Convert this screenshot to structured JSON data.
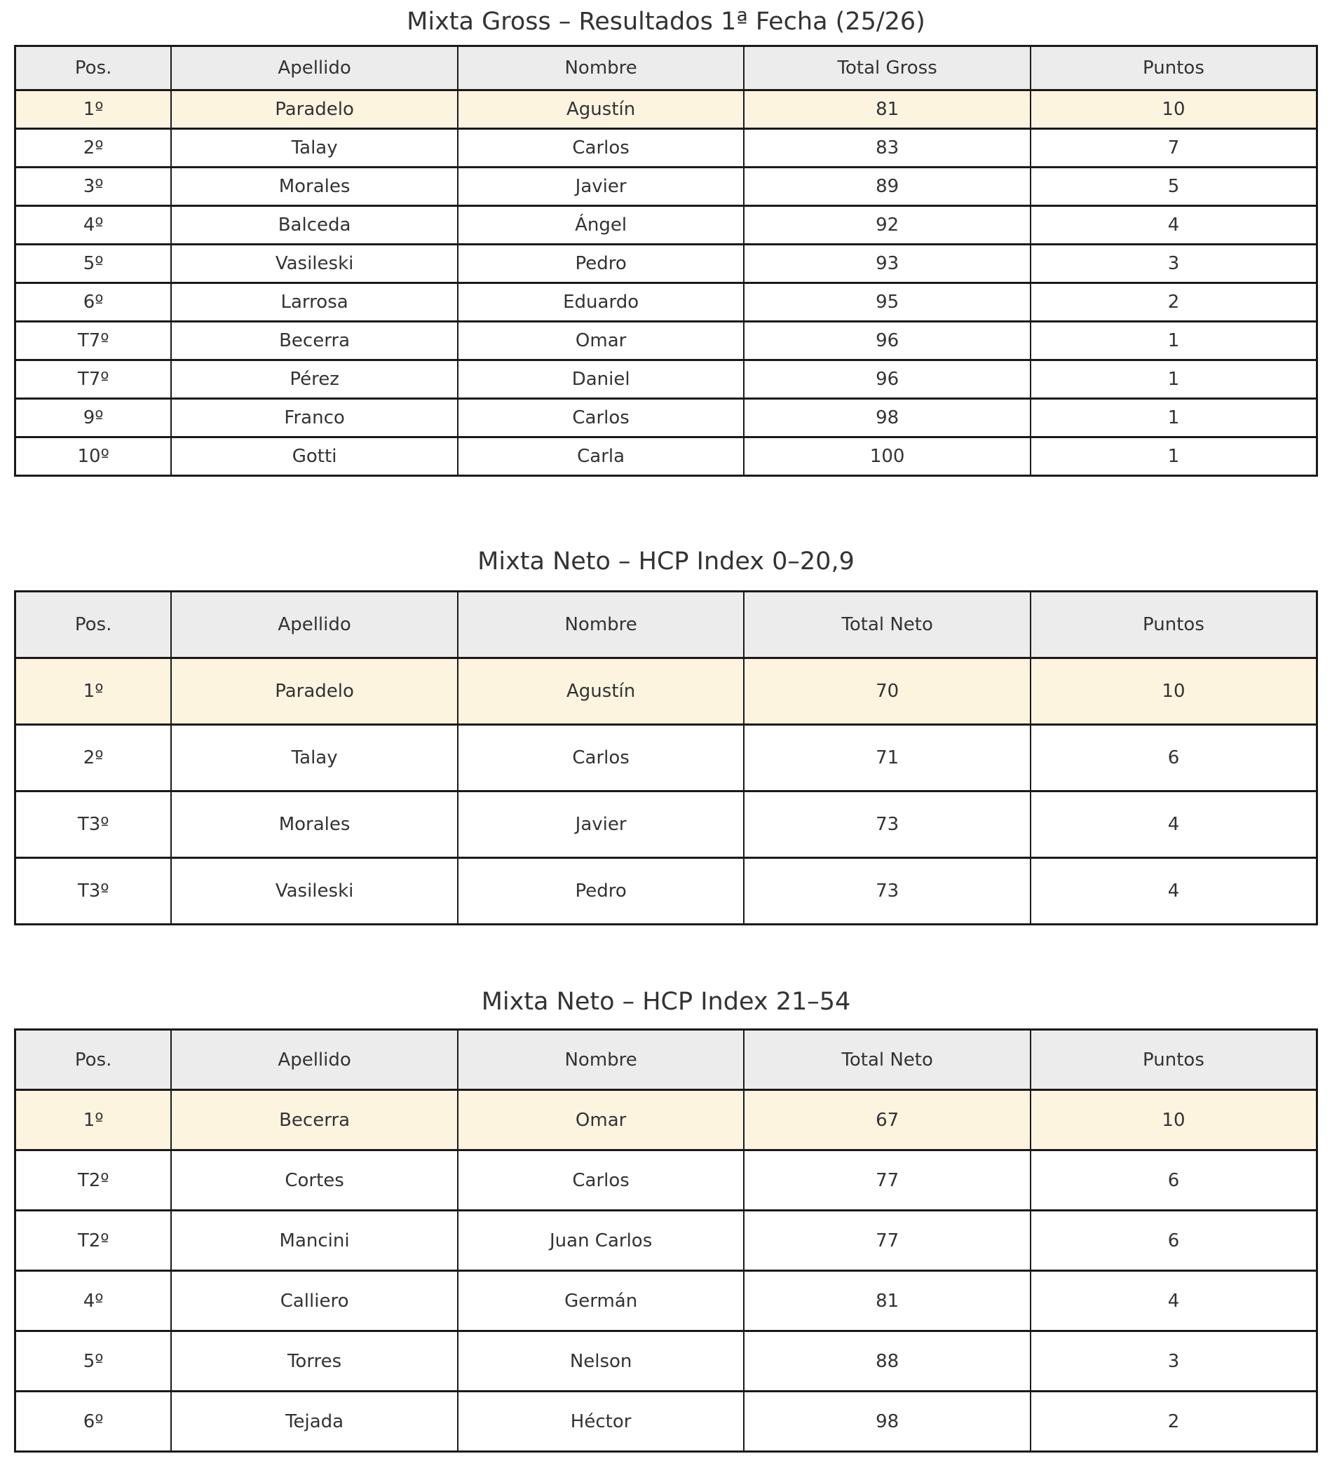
{
  "page": {
    "background": "#ffffff",
    "text_color": "#333333",
    "border_color": "#1a1a1a",
    "header_bg": "#ececec",
    "highlight_bg": "#fdf4e0"
  },
  "tables": [
    {
      "id": "mixta-gross",
      "title": "Mixta Gross – Resultados 1ª Fecha (25/26)",
      "columns": [
        "Pos.",
        "Apellido",
        "Nombre",
        "Total Gross",
        "Puntos"
      ],
      "highlight_row": 0,
      "rows": [
        [
          "1º",
          "Paradelo",
          "Agustín",
          "81",
          "10"
        ],
        [
          "2º",
          "Talay",
          "Carlos",
          "83",
          "7"
        ],
        [
          "3º",
          "Morales",
          "Javier",
          "89",
          "5"
        ],
        [
          "4º",
          "Balceda",
          "Ángel",
          "92",
          "4"
        ],
        [
          "5º",
          "Vasileski",
          "Pedro",
          "93",
          "3"
        ],
        [
          "6º",
          "Larrosa",
          "Eduardo",
          "95",
          "2"
        ],
        [
          "T7º",
          "Becerra",
          "Omar",
          "96",
          "1"
        ],
        [
          "T7º",
          "Pérez",
          "Daniel",
          "96",
          "1"
        ],
        [
          "9º",
          "Franco",
          "Carlos",
          "98",
          "1"
        ],
        [
          "10º",
          "Gotti",
          "Carla",
          "100",
          "1"
        ]
      ]
    },
    {
      "id": "mixta-neto-hcp-0-20-9",
      "title": "Mixta Neto – HCP Index 0–20,9",
      "columns": [
        "Pos.",
        "Apellido",
        "Nombre",
        "Total Neto",
        "Puntos"
      ],
      "highlight_row": 0,
      "rows": [
        [
          "1º",
          "Paradelo",
          "Agustín",
          "70",
          "10"
        ],
        [
          "2º",
          "Talay",
          "Carlos",
          "71",
          "6"
        ],
        [
          "T3º",
          "Morales",
          "Javier",
          "73",
          "4"
        ],
        [
          "T3º",
          "Vasileski",
          "Pedro",
          "73",
          "4"
        ]
      ]
    },
    {
      "id": "mixta-neto-hcp-21-54",
      "title": "Mixta Neto – HCP Index 21–54",
      "columns": [
        "Pos.",
        "Apellido",
        "Nombre",
        "Total Neto",
        "Puntos"
      ],
      "highlight_row": 0,
      "rows": [
        [
          "1º",
          "Becerra",
          "Omar",
          "67",
          "10"
        ],
        [
          "T2º",
          "Cortes",
          "Carlos",
          "77",
          "6"
        ],
        [
          "T2º",
          "Mancini",
          "Juan Carlos",
          "77",
          "6"
        ],
        [
          "4º",
          "Calliero",
          "Germán",
          "81",
          "4"
        ],
        [
          "5º",
          "Torres",
          "Nelson",
          "88",
          "3"
        ],
        [
          "6º",
          "Tejada",
          "Héctor",
          "98",
          "2"
        ]
      ]
    }
  ]
}
